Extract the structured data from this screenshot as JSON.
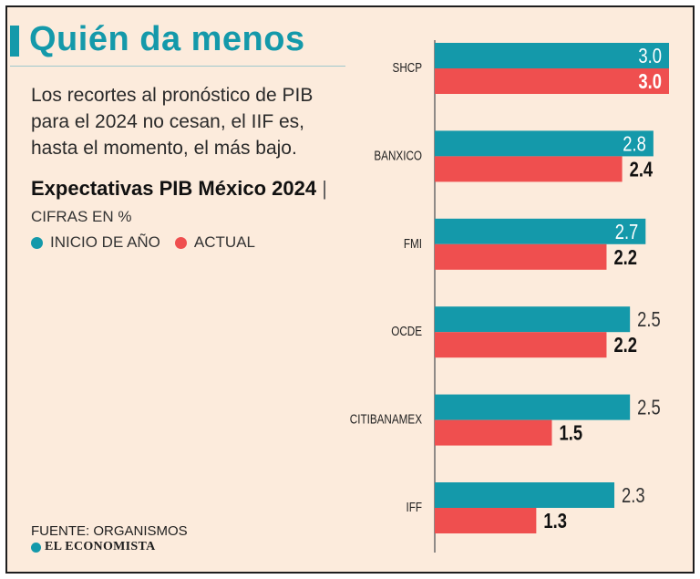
{
  "title": "Quién da menos",
  "subtitle": "Los recortes al pronóstico de PIB para el 2024 no cesan, el IIF es, hasta el momento, el más bajo.",
  "chart_heading": "Expectativas PIB México 2024",
  "chart_units": "CIFRAS EN %",
  "source": "FUENTE: ORGANISMOS",
  "brand": "EL ECONOMISTA",
  "colors": {
    "inicio": "#1499aa",
    "actual": "#ef4f4f",
    "background": "#fcebdc"
  },
  "chart_data": {
    "type": "bar",
    "orientation": "horizontal",
    "title": "Expectativas PIB México 2024",
    "units": "CIFRAS EN %",
    "categories": [
      "SHCP",
      "BANXICO",
      "FMI",
      "OCDE",
      "CITIBANAMEX",
      "IFF"
    ],
    "series": [
      {
        "name": "INICIO DE AÑO",
        "values": [
          3.0,
          2.8,
          2.7,
          2.5,
          2.5,
          2.3
        ]
      },
      {
        "name": "ACTUAL",
        "values": [
          3.0,
          2.4,
          2.2,
          2.2,
          1.5,
          1.3
        ]
      }
    ],
    "xlim": [
      0,
      3.0
    ],
    "legend": "top-left",
    "grid": false
  }
}
